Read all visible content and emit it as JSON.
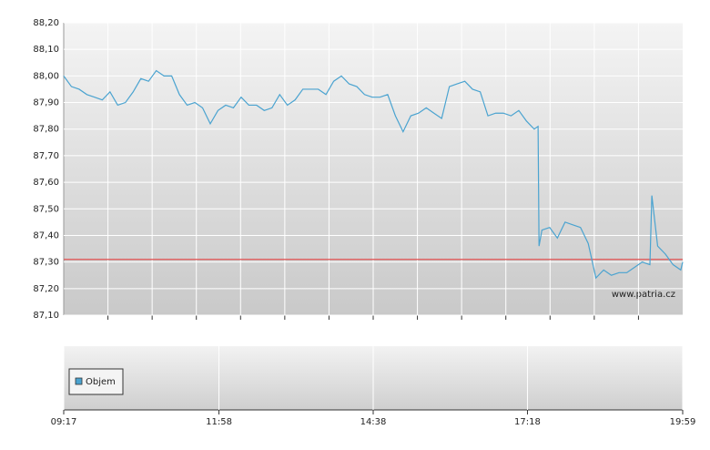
{
  "chart_data": {
    "type": "line",
    "x": [
      "09:17",
      "09:25",
      "09:33",
      "09:41",
      "09:49",
      "09:57",
      "10:05",
      "10:13",
      "10:21",
      "10:29",
      "10:37",
      "10:45",
      "10:53",
      "11:01",
      "11:09",
      "11:17",
      "11:25",
      "11:33",
      "11:41",
      "11:49",
      "11:57",
      "12:05",
      "12:13",
      "12:21",
      "12:29",
      "12:37",
      "12:45",
      "12:53",
      "13:01",
      "13:09",
      "13:17",
      "13:25",
      "13:33",
      "13:41",
      "13:49",
      "13:57",
      "14:05",
      "14:13",
      "14:21",
      "14:29",
      "14:37",
      "14:45",
      "14:53",
      "15:01",
      "15:09",
      "15:17",
      "15:25",
      "15:33",
      "15:41",
      "15:49",
      "15:57",
      "16:05",
      "16:13",
      "16:21",
      "16:29",
      "16:37",
      "16:45",
      "16:53",
      "17:01",
      "17:09",
      "17:17",
      "17:25",
      "17:29",
      "17:30",
      "17:33",
      "17:41",
      "17:49",
      "17:57",
      "18:05",
      "18:13",
      "18:21",
      "18:29",
      "18:37",
      "18:45",
      "18:53",
      "19:01",
      "19:09",
      "19:17",
      "19:25",
      "19:27",
      "19:33",
      "19:41",
      "19:49",
      "19:57",
      "19:59"
    ],
    "series": [
      {
        "color": "#4aa3d0",
        "values": [
          88.0,
          87.96,
          87.95,
          87.93,
          87.92,
          87.91,
          87.94,
          87.89,
          87.9,
          87.94,
          87.99,
          87.98,
          88.02,
          88.0,
          88.0,
          87.93,
          87.89,
          87.9,
          87.88,
          87.82,
          87.87,
          87.89,
          87.88,
          87.92,
          87.89,
          87.89,
          87.87,
          87.88,
          87.93,
          87.89,
          87.91,
          87.95,
          87.95,
          87.95,
          87.93,
          87.98,
          88.0,
          87.97,
          87.96,
          87.93,
          87.92,
          87.92,
          87.93,
          87.85,
          87.79,
          87.85,
          87.86,
          87.88,
          87.86,
          87.84,
          87.96,
          87.97,
          87.98,
          87.95,
          87.94,
          87.85,
          87.86,
          87.86,
          87.85,
          87.87,
          87.83,
          87.8,
          87.81,
          87.36,
          87.42,
          87.43,
          87.39,
          87.45,
          87.44,
          87.43,
          87.37,
          87.24,
          87.27,
          87.25,
          87.26,
          87.26,
          87.28,
          87.3,
          87.29,
          87.55,
          87.36,
          87.33,
          87.29,
          87.27,
          87.3
        ]
      }
    ],
    "reference_line": {
      "value": 87.31,
      "color": "#e05050"
    },
    "xlim": [
      "09:17",
      "19:59"
    ],
    "xticks": [
      "09:17",
      "11:58",
      "14:38",
      "17:18",
      "19:59"
    ],
    "ylim": [
      87.1,
      88.2
    ],
    "yticks": [
      {
        "value": 88.2,
        "label": "88,20"
      },
      {
        "value": 88.1,
        "label": "88,10"
      },
      {
        "value": 88.0,
        "label": "88,00"
      },
      {
        "value": 87.9,
        "label": "87,90"
      },
      {
        "value": 87.8,
        "label": "87,80"
      },
      {
        "value": 87.7,
        "label": "87,70"
      },
      {
        "value": 87.6,
        "label": "87,60"
      },
      {
        "value": 87.5,
        "label": "87,50"
      },
      {
        "value": 87.4,
        "label": "87,40"
      },
      {
        "value": 87.3,
        "label": "87,30"
      },
      {
        "value": 87.2,
        "label": "87,20"
      },
      {
        "value": 87.1,
        "label": "87,10"
      }
    ],
    "grid": true,
    "watermark": "www.patria.cz",
    "volume_legend": "Objem"
  }
}
